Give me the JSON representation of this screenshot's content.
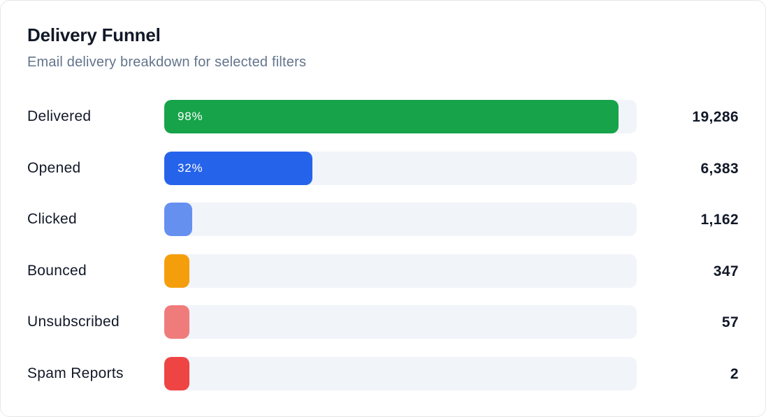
{
  "header": {
    "title": "Delivery Funnel",
    "subtitle": "Email delivery breakdown for selected filters"
  },
  "chart_data": {
    "type": "bar",
    "orientation": "horizontal",
    "title": "Delivery Funnel",
    "subtitle": "Email delivery breakdown for selected filters",
    "categories": [
      "Delivered",
      "Opened",
      "Clicked",
      "Bounced",
      "Unsubscribed",
      "Spam Reports"
    ],
    "values": [
      19286,
      6383,
      1162,
      347,
      57,
      2
    ],
    "value_labels": [
      "19,286",
      "6,383",
      "1,162",
      "347",
      "57",
      "2"
    ],
    "percent_labels": [
      "98%",
      "32%",
      "",
      "",
      "",
      ""
    ],
    "bar_fractions": [
      0.98,
      0.32,
      0.06,
      0.018,
      0.003,
      0.0001
    ],
    "colors": [
      "#16a34a",
      "#2563eb",
      "#6590f0",
      "#f59e0b",
      "#f07b7b",
      "#ef4444"
    ],
    "track_color": "#f1f4f9",
    "grid": false,
    "legend": "none"
  }
}
